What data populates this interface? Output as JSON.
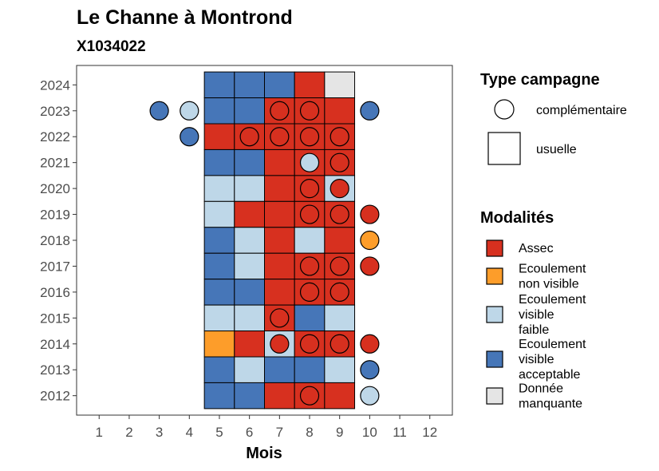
{
  "chart_data": {
    "type": "heatmap",
    "title": "Le Channe à Montrond",
    "subtitle": "X1034022",
    "xlabel": "Mois",
    "ylabel": "",
    "x_ticks": [
      "1",
      "2",
      "3",
      "4",
      "5",
      "6",
      "7",
      "8",
      "9",
      "10",
      "11",
      "12"
    ],
    "y_ticks": [
      "2012",
      "2013",
      "2014",
      "2015",
      "2016",
      "2017",
      "2018",
      "2019",
      "2020",
      "2021",
      "2022",
      "2023",
      "2024"
    ],
    "grid": false,
    "colors": {
      "Assec": "#d7301f",
      "Ecoulement non visible": "#fd9d2a",
      "Ecoulement visible faible": "#bed7e8",
      "Ecoulement visible acceptable": "#4676b8",
      "Donnée manquante": "#e5e5e5"
    },
    "legend_type": {
      "title": "Type campagne",
      "items": [
        {
          "label": "complémentaire",
          "shape": "circle"
        },
        {
          "label": "usuelle",
          "shape": "square"
        }
      ]
    },
    "legend_modalites": {
      "title": "Modalités",
      "items": [
        {
          "key": "Assec",
          "lines": [
            "Assec"
          ]
        },
        {
          "key": "Ecoulement non visible",
          "lines": [
            "Ecoulement",
            "non visible"
          ]
        },
        {
          "key": "Ecoulement visible faible",
          "lines": [
            "Ecoulement",
            "visible",
            "faible"
          ]
        },
        {
          "key": "Ecoulement visible acceptable",
          "lines": [
            "Ecoulement",
            "visible",
            "acceptable"
          ]
        },
        {
          "key": "Donnée manquante",
          "lines": [
            "Donnée",
            "manquante"
          ]
        }
      ]
    },
    "usuelle": [
      {
        "year": 2024,
        "values": {
          "5": "Ecoulement visible acceptable",
          "6": "Ecoulement visible acceptable",
          "7": "Ecoulement visible acceptable",
          "8": "Assec",
          "9": "Donnée manquante"
        }
      },
      {
        "year": 2023,
        "values": {
          "5": "Ecoulement visible acceptable",
          "6": "Ecoulement visible acceptable",
          "7": "Assec",
          "8": "Assec",
          "9": "Assec"
        }
      },
      {
        "year": 2022,
        "values": {
          "5": "Assec",
          "6": "Assec",
          "7": "Assec",
          "8": "Assec",
          "9": "Assec"
        }
      },
      {
        "year": 2021,
        "values": {
          "5": "Ecoulement visible acceptable",
          "6": "Ecoulement visible acceptable",
          "7": "Assec",
          "8": "Assec",
          "9": "Assec"
        }
      },
      {
        "year": 2020,
        "values": {
          "5": "Ecoulement visible faible",
          "6": "Ecoulement visible faible",
          "7": "Assec",
          "8": "Assec",
          "9": "Ecoulement visible faible"
        }
      },
      {
        "year": 2019,
        "values": {
          "5": "Ecoulement visible faible",
          "6": "Assec",
          "7": "Assec",
          "8": "Assec",
          "9": "Assec"
        }
      },
      {
        "year": 2018,
        "values": {
          "5": "Ecoulement visible acceptable",
          "6": "Ecoulement visible faible",
          "7": "Assec",
          "8": "Ecoulement visible faible",
          "9": "Assec"
        }
      },
      {
        "year": 2017,
        "values": {
          "5": "Ecoulement visible acceptable",
          "6": "Ecoulement visible faible",
          "7": "Assec",
          "8": "Assec",
          "9": "Assec"
        }
      },
      {
        "year": 2016,
        "values": {
          "5": "Ecoulement visible acceptable",
          "6": "Ecoulement visible acceptable",
          "7": "Assec",
          "8": "Assec",
          "9": "Assec"
        }
      },
      {
        "year": 2015,
        "values": {
          "5": "Ecoulement visible faible",
          "6": "Ecoulement visible faible",
          "7": "Assec",
          "8": "Ecoulement visible acceptable",
          "9": "Ecoulement visible faible"
        }
      },
      {
        "year": 2014,
        "values": {
          "5": "Ecoulement non visible",
          "6": "Assec",
          "7": "Ecoulement visible faible",
          "8": "Assec",
          "9": "Assec"
        }
      },
      {
        "year": 2013,
        "values": {
          "5": "Ecoulement visible acceptable",
          "6": "Ecoulement visible faible",
          "7": "Ecoulement visible acceptable",
          "8": "Ecoulement visible acceptable",
          "9": "Ecoulement visible faible"
        }
      },
      {
        "year": 2012,
        "values": {
          "5": "Ecoulement visible acceptable",
          "6": "Ecoulement visible acceptable",
          "7": "Assec",
          "8": "Assec",
          "9": "Assec"
        }
      }
    ],
    "complementaire": [
      {
        "year": 2023,
        "month": 3,
        "value": "Ecoulement visible acceptable"
      },
      {
        "year": 2023,
        "month": 4,
        "value": "Ecoulement visible faible"
      },
      {
        "year": 2023,
        "month": 7,
        "value": "Assec"
      },
      {
        "year": 2023,
        "month": 8,
        "value": "Assec"
      },
      {
        "year": 2023,
        "month": 10,
        "value": "Ecoulement visible acceptable"
      },
      {
        "year": 2022,
        "month": 4,
        "value": "Ecoulement visible acceptable"
      },
      {
        "year": 2022,
        "month": 6,
        "value": "Assec"
      },
      {
        "year": 2022,
        "month": 7,
        "value": "Assec"
      },
      {
        "year": 2022,
        "month": 8,
        "value": "Assec"
      },
      {
        "year": 2022,
        "month": 9,
        "value": "Assec"
      },
      {
        "year": 2021,
        "month": 8,
        "value": "Ecoulement visible faible"
      },
      {
        "year": 2021,
        "month": 9,
        "value": "Assec"
      },
      {
        "year": 2020,
        "month": 8,
        "value": "Assec"
      },
      {
        "year": 2020,
        "month": 9,
        "value": "Assec"
      },
      {
        "year": 2019,
        "month": 8,
        "value": "Assec"
      },
      {
        "year": 2019,
        "month": 9,
        "value": "Assec"
      },
      {
        "year": 2019,
        "month": 10,
        "value": "Assec"
      },
      {
        "year": 2018,
        "month": 10,
        "value": "Ecoulement non visible"
      },
      {
        "year": 2017,
        "month": 8,
        "value": "Assec"
      },
      {
        "year": 2017,
        "month": 9,
        "value": "Assec"
      },
      {
        "year": 2017,
        "month": 10,
        "value": "Assec"
      },
      {
        "year": 2016,
        "month": 8,
        "value": "Assec"
      },
      {
        "year": 2016,
        "month": 9,
        "value": "Assec"
      },
      {
        "year": 2015,
        "month": 7,
        "value": "Assec"
      },
      {
        "year": 2014,
        "month": 7,
        "value": "Assec"
      },
      {
        "year": 2014,
        "month": 8,
        "value": "Assec"
      },
      {
        "year": 2014,
        "month": 9,
        "value": "Assec"
      },
      {
        "year": 2014,
        "month": 10,
        "value": "Assec"
      },
      {
        "year": 2013,
        "month": 10,
        "value": "Ecoulement visible acceptable"
      },
      {
        "year": 2012,
        "month": 8,
        "value": "Assec"
      },
      {
        "year": 2012,
        "month": 10,
        "value": "Ecoulement visible faible"
      }
    ]
  }
}
